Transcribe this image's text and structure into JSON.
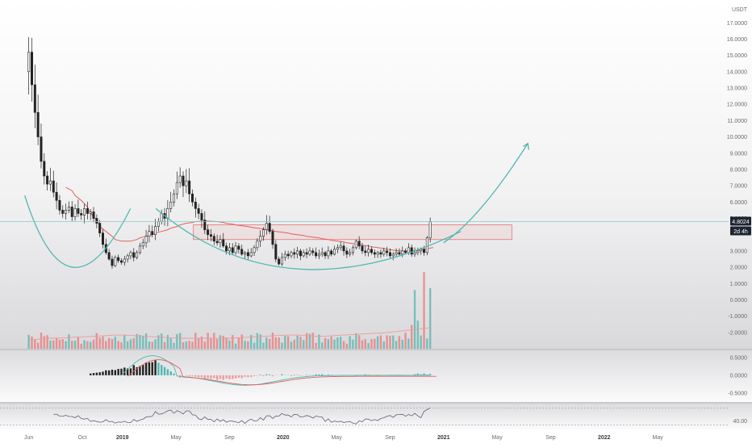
{
  "chart_data": {
    "type": "candlestick",
    "title": "",
    "currency": "USDT",
    "price_scale": {
      "min": -3.0,
      "max": 18.4,
      "ticks": [
        "17.0000",
        "16.0000",
        "15.0000",
        "14.0000",
        "13.0000",
        "12.0000",
        "11.0000",
        "10.0000",
        "9.0000",
        "8.0000",
        "7.0000",
        "6.0000",
        "5.0000",
        "3.0000",
        "2.0000",
        "1.0000",
        "0.0000",
        "-1.0000",
        "-2.0000"
      ]
    },
    "last_price": {
      "label": "4.8024",
      "value": 4.8024,
      "countdown": "2d 4h"
    },
    "x_axis_labels": [
      "Jun",
      "Oct",
      "2019",
      "May",
      "Sep",
      "2020",
      "May",
      "Sep",
      "2021",
      "May",
      "Sep",
      "2022",
      "May"
    ],
    "x_label_months": [
      0,
      4,
      7,
      11,
      15,
      19,
      23,
      27,
      31,
      35,
      39,
      43,
      47
    ],
    "x_axis_range_months": [
      -2.15,
      52.3
    ],
    "candles_weekly": {
      "start": "2018-06 (week 1)",
      "close": [
        15.2,
        13.2,
        11.5,
        10.0,
        8.5,
        7.6,
        7.1,
        7.3,
        6.6,
        6.1,
        5.5,
        5.3,
        5.5,
        5.7,
        5.1,
        5.6,
        5.3,
        5.2,
        5.6,
        5.3,
        5.4,
        5.0,
        4.7,
        4.1,
        3.4,
        2.9,
        2.5,
        2.1,
        2.6,
        2.4,
        2.3,
        2.5,
        2.7,
        2.9,
        2.6,
        2.9,
        3.3,
        3.5,
        3.9,
        4.2,
        4.0,
        4.5,
        4.8,
        5.3,
        5.0,
        5.6,
        6.0,
        6.5,
        7.2,
        7.6,
        7.0,
        7.3,
        6.5,
        6.0,
        5.6,
        5.3,
        4.9,
        4.3,
        4.0,
        3.9,
        3.6,
        3.5,
        3.7,
        3.3,
        3.0,
        3.2,
        2.9,
        3.3,
        3.1,
        2.8,
        2.9,
        2.7,
        2.9,
        3.2,
        3.6,
        3.9,
        4.3,
        4.7,
        4.2,
        3.4,
        2.5,
        2.2,
        2.6,
        2.8,
        2.7,
        2.9,
        2.8,
        3.0,
        2.7,
        2.9,
        2.8,
        3.0,
        2.9,
        2.7,
        2.8,
        2.9,
        2.7,
        3.0,
        2.8,
        3.1,
        3.2,
        3.3,
        3.0,
        2.8,
        2.9,
        3.2,
        3.6,
        3.3,
        3.0,
        2.9,
        3.1,
        2.9,
        2.8,
        2.9,
        2.8,
        3.0,
        2.9,
        2.7,
        2.8,
        2.9,
        2.8,
        3.0,
        2.9,
        3.2,
        2.8,
        2.9,
        3.0,
        3.1,
        2.9,
        3.8,
        4.8024
      ]
    },
    "moving_average_weekly": [
      6.9,
      6.7,
      6.4,
      6.1,
      5.7,
      5.3,
      4.9,
      4.5,
      4.2,
      3.9,
      3.7,
      3.6,
      3.6,
      3.6,
      3.7,
      3.8,
      3.9,
      4.0,
      4.1,
      4.2,
      4.3,
      4.4,
      4.5,
      4.6,
      4.7,
      4.75,
      4.8,
      4.82,
      4.83,
      4.82,
      4.8,
      4.75,
      4.7,
      4.65,
      4.6,
      4.55,
      4.5,
      4.45,
      4.4,
      4.35,
      4.3,
      4.25,
      4.2,
      4.15,
      4.1,
      4.05,
      4.0,
      3.95,
      3.9,
      3.85,
      3.8,
      3.75,
      3.7,
      3.65,
      3.6,
      3.55,
      3.5,
      3.45,
      3.4,
      3.35,
      3.3,
      3.25,
      3.2,
      3.15,
      3.1,
      3.05,
      3.0,
      3.0,
      3.0,
      3.0,
      3.05,
      3.1,
      3.15,
      3.2
    ],
    "resistance_zone": {
      "price_from": 3.7,
      "price_to": 4.6,
      "from_month": 12.3,
      "to_month": 36.1
    },
    "cup_curves": [
      {
        "style": "arc",
        "from": [
          -0.3,
          6.4
        ],
        "via": [
          3.3,
          2.0
        ],
        "to": [
          7.6,
          5.6
        ]
      },
      {
        "style": "arc",
        "from": [
          9.5,
          5.6
        ],
        "via": [
          20.0,
          1.9
        ],
        "to": [
          32.3,
          4.2
        ]
      }
    ],
    "projection_arrow": {
      "from": [
        31.0,
        3.5
      ],
      "to": [
        37.3,
        9.6
      ]
    },
    "volume_sma": [
      0.9,
      0.9,
      1.0,
      1.0,
      1.05,
      1.1,
      1.15,
      1.2,
      1.25,
      1.3,
      1.3,
      1.25,
      1.2,
      1.15,
      1.1,
      1.05,
      1.0,
      1.0,
      1.0,
      1.0,
      1.0,
      1.0,
      1.05,
      1.1,
      1.15,
      1.2,
      1.25,
      1.3,
      1.3,
      1.25,
      1.2,
      1.2,
      1.25,
      1.3,
      1.35,
      1.4,
      1.45,
      1.5,
      1.6,
      1.7,
      1.8,
      1.9,
      2.0
    ],
    "macd": {
      "scale": {
        "min": -0.75,
        "max": 0.7,
        "ticks": [
          "0.5000",
          "0.0000",
          "-0.5000"
        ]
      }
    },
    "rsi": {
      "scale_label": "40.00",
      "value_at_label": 40
    }
  }
}
